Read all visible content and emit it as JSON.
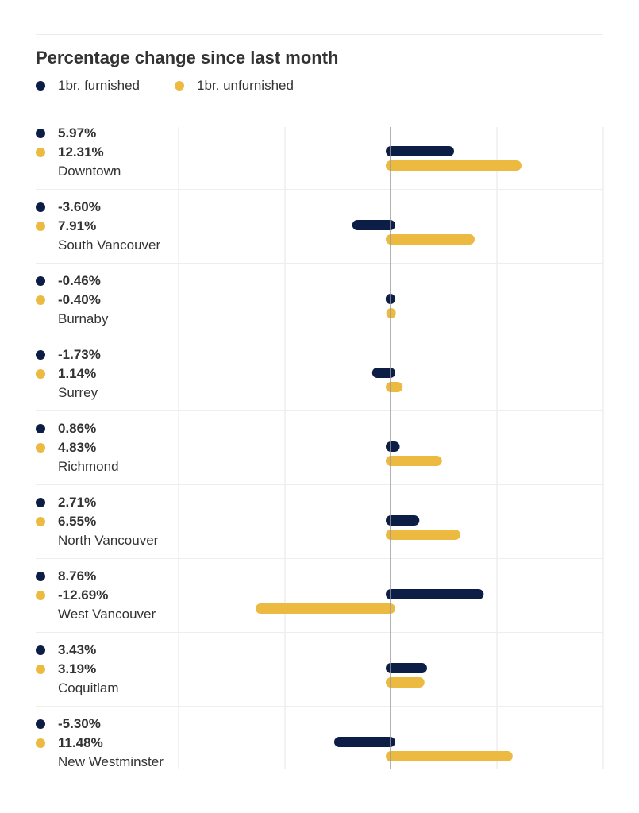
{
  "colors": {
    "furnished": "#0d1e46",
    "unfurnished": "#ecba41",
    "grid": "#e6e6e6",
    "zero": "#999999"
  },
  "chart_data": {
    "type": "bar",
    "orientation": "horizontal",
    "title": "Percentage change since last month",
    "legend_position": "top-left",
    "categories": [
      "Downtown",
      "South Vancouver",
      "Burnaby",
      "Surrey",
      "Richmond",
      "North Vancouver",
      "West Vancouver",
      "Coquitlam",
      "New Westminster"
    ],
    "series": [
      {
        "name": "1br. furnished",
        "values": [
          5.97,
          -3.6,
          -0.46,
          -1.73,
          0.86,
          2.71,
          8.76,
          3.43,
          -5.3
        ],
        "labels": [
          "5.97%",
          "-3.60%",
          "-0.46%",
          "-1.73%",
          "0.86%",
          "2.71%",
          "8.76%",
          "3.43%",
          "-5.30%"
        ]
      },
      {
        "name": "1br. unfurnished",
        "values": [
          12.31,
          7.91,
          -0.4,
          1.14,
          4.83,
          6.55,
          -12.69,
          3.19,
          11.48
        ],
        "labels": [
          "12.31%",
          "7.91%",
          "-0.40%",
          "1.14%",
          "4.83%",
          "6.55%",
          "-12.69%",
          "3.19%",
          "11.48%"
        ]
      }
    ],
    "xlim": [
      -20,
      20
    ],
    "grid": true
  }
}
